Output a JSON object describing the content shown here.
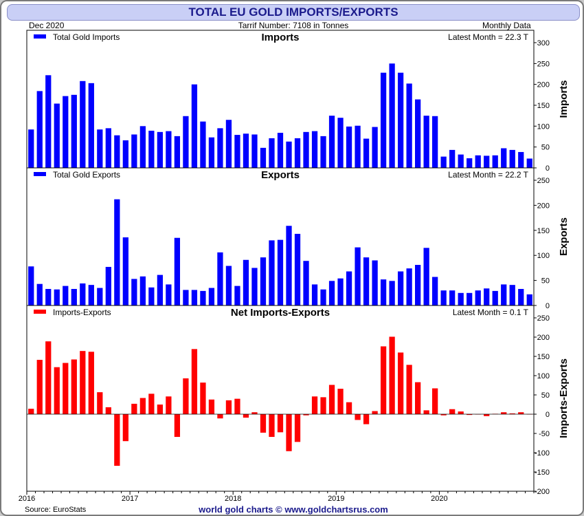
{
  "header": {
    "title": "TOTAL EU GOLD IMPORTS/EXPORTS",
    "date": "Dec  2020",
    "tariff": "Tarrif Number: 7108 in Tonnes",
    "frequency": "Monthly Data"
  },
  "footer": {
    "source": "Source: EuroStats",
    "credit": "world gold charts © www.goldchartsrus.com"
  },
  "chart_data": {
    "type": "bar",
    "x_start": "2016-01",
    "x_tick_labels": [
      "2016",
      "2017",
      "2018",
      "2019",
      "2020"
    ],
    "colors": {
      "imports": "#0000ff",
      "exports": "#0000ff",
      "net": "#ff0000"
    },
    "panels": [
      {
        "key": "imports",
        "title": "Imports",
        "legend": "Total Gold Imports",
        "latest": "Latest Month = 22.3 T",
        "ylabel": "Imports",
        "ylim": [
          0,
          300
        ],
        "yticks": [
          0,
          50,
          100,
          150,
          200,
          250,
          300
        ]
      },
      {
        "key": "exports",
        "title": "Exports",
        "legend": "Total Gold Exports",
        "latest": "Latest Month = 22.2 T",
        "ylabel": "Exports",
        "ylim": [
          0,
          250
        ],
        "yticks": [
          0,
          50,
          100,
          150,
          200,
          250
        ]
      },
      {
        "key": "net",
        "title": "Net Imports-Exports",
        "legend": "Imports-Exports",
        "latest": "Latest Month = 0.1 T",
        "ylabel": "Imports-Exports",
        "ylim": [
          -200,
          250
        ],
        "yticks": [
          -200,
          -150,
          -100,
          -50,
          0,
          50,
          100,
          150,
          200,
          250
        ]
      }
    ],
    "series": [
      {
        "name": "Imports",
        "values": [
          92,
          184,
          222,
          154,
          172,
          175,
          208,
          203,
          92,
          95,
          78,
          66,
          80,
          100,
          89,
          86,
          88,
          76,
          124,
          200,
          111,
          73,
          95,
          115,
          79,
          82,
          80,
          48,
          71,
          84,
          63,
          71,
          86,
          88,
          76,
          125,
          120,
          99,
          101,
          70,
          98,
          228,
          250,
          228,
          202,
          164,
          125,
          124,
          27,
          43,
          32,
          23,
          30,
          29,
          30,
          47,
          43,
          38,
          22.3
        ]
      },
      {
        "name": "Exports",
        "values": [
          78,
          43,
          33,
          32,
          39,
          33,
          44,
          41,
          35,
          77,
          212,
          136,
          53,
          58,
          36,
          61,
          42,
          135,
          31,
          31,
          29,
          35,
          106,
          79,
          39,
          91,
          75,
          96,
          130,
          131,
          159,
          143,
          89,
          42,
          32,
          49,
          54,
          68,
          116,
          96,
          90,
          52,
          49,
          68,
          74,
          81,
          115,
          57,
          30,
          30,
          25,
          25,
          30,
          34,
          29,
          42,
          41,
          33,
          22.2
        ]
      },
      {
        "name": "Imports-Exports",
        "values": [
          14,
          141,
          189,
          122,
          133,
          142,
          164,
          162,
          57,
          18,
          -134,
          -70,
          27,
          42,
          53,
          25,
          46,
          -59,
          93,
          169,
          82,
          38,
          -11,
          36,
          40,
          -9,
          5,
          -48,
          -59,
          -47,
          -96,
          -72,
          -3,
          46,
          44,
          76,
          66,
          31,
          -15,
          -26,
          8,
          176,
          201,
          160,
          128,
          83,
          10,
          67,
          -3,
          13,
          7,
          -2,
          0,
          -5,
          1,
          5,
          2,
          5,
          0.1
        ]
      }
    ]
  }
}
